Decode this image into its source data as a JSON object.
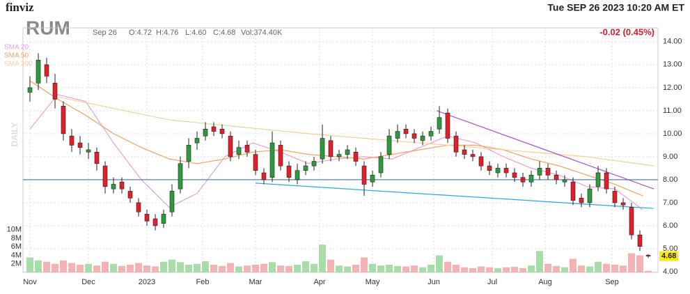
{
  "chart_data": {
    "type": "candlestick",
    "logo": "finviz",
    "datetime": "Tue SEP 26 2023 10:20 AM ET",
    "ticker": "RUM",
    "ohlc_date": "Sep 26",
    "ohlc": [
      "O:4.72",
      "H:4.76",
      "L:4.60",
      "C:4.68"
    ],
    "volume_text": "Vol:374.40K",
    "change": "-0.02 (0.45%)",
    "period_label": "DAILY",
    "up_color": "#2e9a3e",
    "down_color": "#e0202a",
    "up_volume_color": "#a8dca8",
    "down_volume_color": "#f4b2b2",
    "x": [
      0,
      3,
      6,
      9,
      12,
      15,
      18,
      21,
      24,
      27,
      30,
      33,
      36,
      39,
      42,
      45,
      48,
      51,
      54,
      57,
      60,
      63,
      66,
      69,
      72,
      75,
      78,
      81,
      84,
      87,
      90,
      93,
      96,
      99,
      102,
      105,
      108,
      111,
      114,
      117,
      120,
      123,
      126,
      129,
      132,
      135,
      138,
      141,
      144,
      147,
      150,
      153,
      156,
      159,
      162,
      165,
      168,
      171,
      174,
      177,
      180,
      183,
      186,
      189,
      192,
      195,
      198,
      201,
      204,
      207,
      210,
      213,
      216,
      219,
      222
    ],
    "open": [
      11.8,
      12.2,
      13.0,
      12.2,
      11.2,
      9.9,
      9.6,
      9.2,
      9.2,
      8.6,
      7.6,
      7.9,
      7.5,
      7.0,
      6.5,
      6.3,
      6.1,
      6.6,
      7.6,
      8.8,
      9.6,
      9.9,
      10.3,
      10.2,
      9.9,
      9.1,
      9.5,
      9.1,
      8.3,
      8.1,
      9.5,
      8.6,
      8.0,
      8.4,
      8.6,
      8.9,
      9.7,
      9.0,
      9.1,
      9.2,
      8.6,
      7.9,
      8.3,
      9.1,
      9.8,
      10.2,
      10.0,
      9.7,
      9.9,
      10.2,
      10.9,
      9.9,
      9.3,
      9.1,
      9.0,
      8.6,
      8.3,
      8.5,
      8.3,
      8.1,
      7.9,
      8.2,
      8.5,
      8.2,
      7.9,
      7.9,
      7.2,
      7.0,
      7.7,
      8.3,
      7.5,
      7.0,
      6.8,
      5.6,
      4.72
    ],
    "high": [
      12.5,
      13.5,
      13.3,
      12.6,
      11.4,
      10.2,
      9.9,
      9.6,
      9.4,
      8.8,
      8.1,
      8.1,
      7.7,
      7.2,
      6.7,
      6.5,
      6.7,
      7.8,
      9.0,
      9.8,
      10.1,
      10.5,
      10.5,
      10.4,
      10.1,
      9.7,
      9.7,
      9.3,
      8.5,
      10.1,
      9.7,
      8.8,
      8.7,
      8.8,
      9.0,
      10.4,
      9.9,
      9.3,
      9.5,
      9.4,
      8.8,
      8.4,
      9.2,
      10.2,
      10.4,
      10.4,
      10.2,
      10.1,
      10.3,
      11.2,
      11.1,
      10.1,
      9.5,
      9.3,
      9.2,
      8.8,
      8.7,
      8.7,
      8.5,
      8.3,
      8.4,
      8.8,
      8.7,
      8.4,
      8.2,
      8.1,
      7.4,
      7.8,
      8.6,
      8.5,
      7.7,
      7.2,
      7.0,
      5.8,
      4.76
    ],
    "low": [
      11.4,
      11.9,
      12.2,
      11.1,
      9.7,
      9.2,
      9.1,
      8.9,
      8.4,
      7.4,
      7.4,
      7.4,
      7.0,
      6.4,
      6.0,
      5.8,
      5.9,
      6.4,
      7.4,
      8.5,
      9.3,
      9.7,
      9.9,
      9.8,
      8.8,
      8.9,
      9.0,
      8.2,
      7.8,
      7.9,
      8.4,
      7.9,
      7.8,
      8.2,
      8.4,
      8.7,
      8.8,
      8.8,
      8.9,
      8.6,
      7.3,
      7.7,
      8.1,
      8.9,
      9.6,
      9.8,
      9.6,
      9.5,
      9.7,
      10.0,
      9.6,
      9.0,
      8.9,
      8.8,
      8.4,
      8.2,
      8.1,
      8.1,
      7.9,
      7.7,
      7.7,
      8.0,
      8.0,
      7.8,
      7.7,
      6.9,
      6.8,
      6.8,
      7.5,
      7.4,
      6.8,
      6.7,
      5.4,
      4.9,
      4.6
    ],
    "close": [
      12.0,
      13.2,
      12.5,
      11.5,
      10.0,
      9.5,
      9.4,
      9.3,
      8.7,
      7.7,
      7.8,
      7.6,
      7.2,
      6.6,
      6.2,
      6.0,
      6.5,
      7.5,
      8.7,
      9.5,
      9.8,
      10.2,
      10.1,
      10.0,
      9.0,
      9.4,
      9.2,
      8.4,
      8.0,
      9.6,
      8.6,
      8.1,
      8.4,
      8.6,
      8.8,
      9.8,
      9.0,
      9.1,
      9.3,
      8.8,
      7.8,
      8.2,
      9.0,
      9.9,
      10.1,
      10.0,
      9.8,
      9.9,
      10.1,
      10.7,
      9.8,
      9.2,
      9.1,
      9.0,
      8.6,
      8.4,
      8.5,
      8.3,
      8.1,
      7.9,
      8.2,
      8.5,
      8.2,
      8.0,
      8.0,
      7.1,
      7.0,
      7.6,
      8.3,
      7.6,
      7.0,
      6.9,
      5.6,
      5.1,
      4.68
    ],
    "volume": [
      3.5,
      2.8,
      2.5,
      2.0,
      2.8,
      2.2,
      1.8,
      2.0,
      1.6,
      2.5,
      2.0,
      1.5,
      1.8,
      2.2,
      1.6,
      1.4,
      2.5,
      3.0,
      2.4,
      1.8,
      2.0,
      2.6,
      1.8,
      1.5,
      2.2,
      1.4,
      1.6,
      1.8,
      2.0,
      2.4,
      1.6,
      1.5,
      1.8,
      2.6,
      2.0,
      6.5,
      3.0,
      1.6,
      1.4,
      1.8,
      3.5,
      2.0,
      1.6,
      1.8,
      1.5,
      1.4,
      1.6,
      1.2,
      1.8,
      4.0,
      2.5,
      1.8,
      1.2,
      1.0,
      1.4,
      1.2,
      1.0,
      1.2,
      1.3,
      1.0,
      1.6,
      5.0,
      2.0,
      1.5,
      1.2,
      3.2,
      1.6,
      1.4,
      2.5,
      2.0,
      1.8,
      1.6,
      4.5,
      4.0,
      0.37
    ],
    "series": [
      {
        "name": "SMA 20",
        "color": "#e9a0d8",
        "x": [
          0,
          10,
          20,
          30,
          40,
          50,
          60,
          70,
          80,
          90,
          100,
          110,
          120,
          130,
          140,
          150,
          160,
          170,
          180,
          190,
          200,
          210,
          220
        ],
        "values": [
          10.2,
          11.7,
          11.4,
          9.6,
          8.0,
          6.8,
          7.4,
          9.0,
          9.6,
          9.2,
          8.7,
          8.9,
          9.0,
          8.9,
          9.4,
          9.9,
          9.6,
          9.0,
          8.5,
          8.2,
          7.7,
          7.6,
          6.7
        ]
      },
      {
        "name": "SMA 50",
        "color": "#f2a35e",
        "x": [
          0,
          10,
          20,
          30,
          40,
          50,
          60,
          70,
          80,
          90,
          100,
          110,
          120,
          130,
          140,
          150,
          160,
          170,
          180,
          190,
          200,
          210,
          220
        ],
        "values": [
          12.3,
          11.5,
          10.8,
          10.0,
          9.4,
          8.9,
          8.7,
          8.9,
          9.2,
          9.3,
          9.1,
          9.0,
          8.9,
          9.1,
          9.3,
          9.5,
          9.5,
          9.3,
          8.9,
          8.6,
          8.2,
          7.8,
          7.3
        ]
      },
      {
        "name": "SMA 200",
        "color": "#f5cf9a",
        "x": [
          10,
          50,
          100,
          150,
          200,
          224
        ],
        "values": [
          11.6,
          10.6,
          10.0,
          9.5,
          9.0,
          8.6
        ]
      }
    ],
    "trendlines": [
      {
        "color": "#a855c7",
        "x": [
          146,
          224
        ],
        "values": [
          11.0,
          7.6
        ]
      },
      {
        "color": "#31a7d8",
        "x": [
          81,
          224
        ],
        "values": [
          7.85,
          6.75
        ]
      },
      {
        "color": "#4a6fa5",
        "x": [
          -2.5,
          225.5
        ],
        "values": [
          8.0,
          8.0
        ]
      }
    ],
    "xlim": [
      -2.5,
      225.5
    ],
    "xticks": [
      {
        "value": 0,
        "label": "Nov"
      },
      {
        "value": 21,
        "label": "Dec"
      },
      {
        "value": 42,
        "label": "2023"
      },
      {
        "value": 62,
        "label": "Feb"
      },
      {
        "value": 81,
        "label": "Mar"
      },
      {
        "value": 104,
        "label": "Apr"
      },
      {
        "value": 123,
        "label": "May"
      },
      {
        "value": 145,
        "label": "Jun"
      },
      {
        "value": 166,
        "label": "Jul"
      },
      {
        "value": 185,
        "label": "Aug"
      },
      {
        "value": 209,
        "label": "Sep"
      }
    ],
    "ylim": [
      3.97,
      14.6
    ],
    "yticks": [
      {
        "value": 4,
        "label": "4.00"
      },
      {
        "value": 5,
        "label": "5.00"
      },
      {
        "value": 6,
        "label": "6.00"
      },
      {
        "value": 7,
        "label": "7.00"
      },
      {
        "value": 8,
        "label": "8.00"
      },
      {
        "value": 9,
        "label": "9.00"
      },
      {
        "value": 10,
        "label": "10.00"
      },
      {
        "value": 11,
        "label": "11.00"
      },
      {
        "value": 12,
        "label": "12.00"
      },
      {
        "value": 13,
        "label": "13.00"
      },
      {
        "value": 14,
        "label": "14.00"
      }
    ],
    "volume_lim": [
      0,
      11.1
    ],
    "volume_ticks": [
      {
        "value": 2,
        "label": "2M"
      },
      {
        "value": 4,
        "label": "4M"
      },
      {
        "value": 6,
        "label": "6M"
      },
      {
        "value": 8,
        "label": "8M"
      },
      {
        "value": 10,
        "label": "10M"
      }
    ],
    "grid": true
  }
}
